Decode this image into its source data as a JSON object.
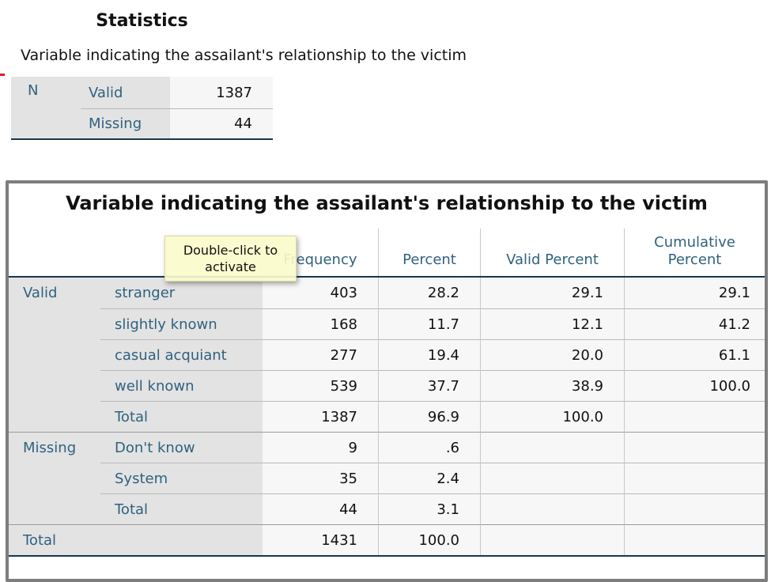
{
  "colors": {
    "label_text": "#30617f",
    "label_background": "#e3e3e3",
    "value_background": "#f7f7f7",
    "dark_rule": "#17364f",
    "frame_border": "#7d7d7d",
    "tooltip_background": "#fbfbcb",
    "marker_red": "#e8192c"
  },
  "statistics_block": {
    "title": "Statistics",
    "caption": "Variable indicating the assailant's relationship to the victim",
    "group_label": "N",
    "rows": [
      {
        "label": "Valid",
        "value": "1387"
      },
      {
        "label": "Missing",
        "value": "44"
      }
    ]
  },
  "tooltip": {
    "line1": "Double-click to",
    "line2": "activate"
  },
  "frequency_table": {
    "title": "Variable indicating the assailant's relationship to the victim",
    "columns": {
      "frequency": "Frequency",
      "percent": "Percent",
      "valid_percent": "Valid Percent",
      "cumulative_percent": "Cumulative Percent"
    },
    "groups": [
      {
        "group": "Valid",
        "rows": [
          {
            "label": "stranger",
            "frequency": "403",
            "percent": "28.2",
            "valid_percent": "29.1",
            "cumulative_percent": "29.1"
          },
          {
            "label": "slightly known",
            "frequency": "168",
            "percent": "11.7",
            "valid_percent": "12.1",
            "cumulative_percent": "41.2"
          },
          {
            "label": "casual acquiant",
            "frequency": "277",
            "percent": "19.4",
            "valid_percent": "20.0",
            "cumulative_percent": "61.1"
          },
          {
            "label": "well known",
            "frequency": "539",
            "percent": "37.7",
            "valid_percent": "38.9",
            "cumulative_percent": "100.0"
          },
          {
            "label": "Total",
            "frequency": "1387",
            "percent": "96.9",
            "valid_percent": "100.0",
            "cumulative_percent": ""
          }
        ]
      },
      {
        "group": "Missing",
        "rows": [
          {
            "label": "Don't know",
            "frequency": "9",
            "percent": ".6",
            "valid_percent": "",
            "cumulative_percent": ""
          },
          {
            "label": "System",
            "frequency": "35",
            "percent": "2.4",
            "valid_percent": "",
            "cumulative_percent": ""
          },
          {
            "label": "Total",
            "frequency": "44",
            "percent": "3.1",
            "valid_percent": "",
            "cumulative_percent": ""
          }
        ]
      }
    ],
    "total_row": {
      "label": "Total",
      "frequency": "1431",
      "percent": "100.0",
      "valid_percent": "",
      "cumulative_percent": ""
    }
  }
}
